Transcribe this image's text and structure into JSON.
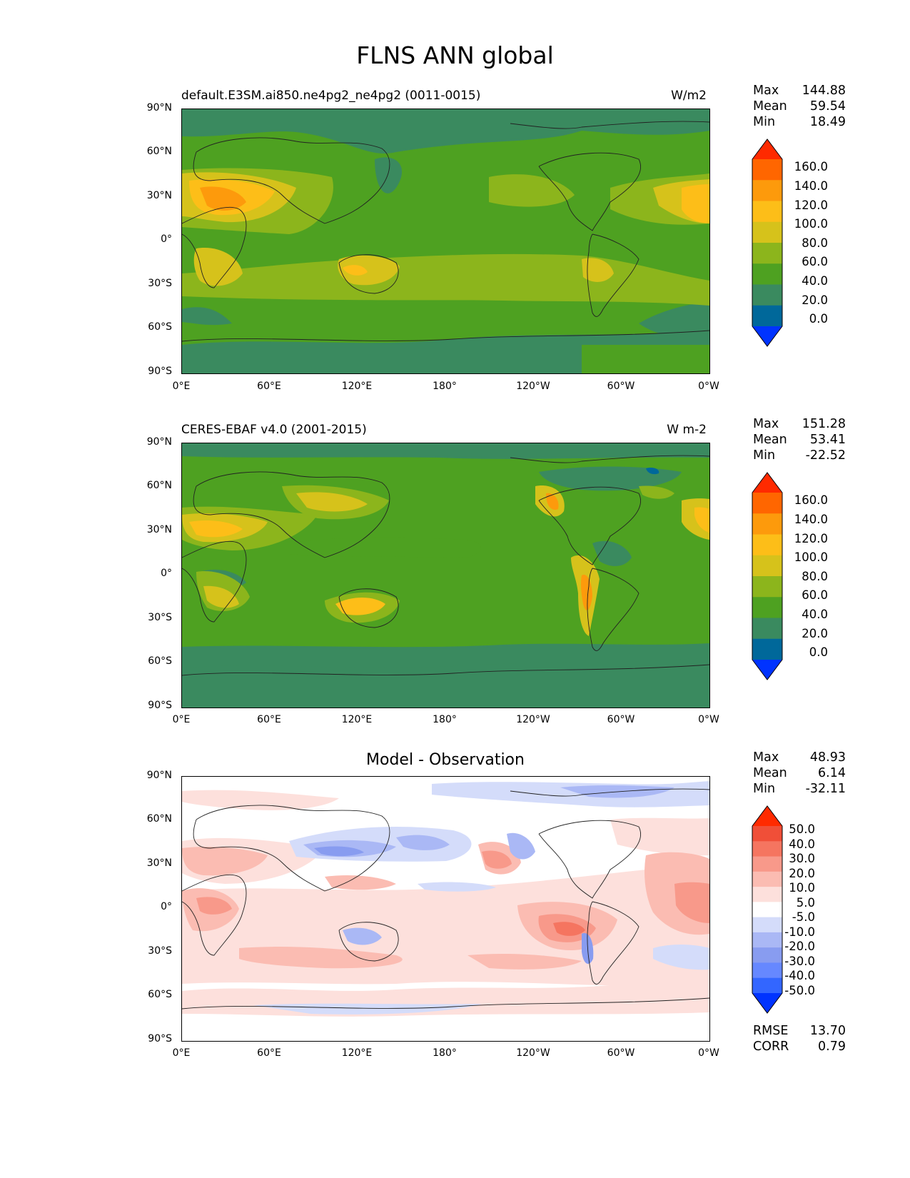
{
  "title": "FLNS ANN global",
  "axes": {
    "lat_ticks": [
      "90°N",
      "60°N",
      "30°N",
      "0°",
      "30°S",
      "60°S",
      "90°S"
    ],
    "lon_ticks": [
      "0°E",
      "60°E",
      "120°E",
      "180°",
      "120°W",
      "60°W",
      "0°W"
    ]
  },
  "panels": [
    {
      "title_left": "default.E3SM.ai850.ne4pg2_ne4pg2 (0011-0015)",
      "title_right": "W/m2",
      "stats": [
        {
          "label": "Max",
          "value": "144.88"
        },
        {
          "label": "Mean",
          "value": "59.54"
        },
        {
          "label": "Min",
          "value": "18.49"
        }
      ],
      "colorbar": {
        "labels": [
          "160.0",
          "140.0",
          "120.0",
          "100.0",
          "80.0",
          "60.0",
          "40.0",
          "20.0",
          "0.0"
        ],
        "colors": [
          "#0033ff",
          "#00689a",
          "#3a8a5f",
          "#4ea121",
          "#8cb51c",
          "#d6c21b",
          "#fdbe18",
          "#fd9a0c",
          "#ff6600",
          "#ff2a00"
        ]
      }
    },
    {
      "title_left": "CERES-EBAF v4.0 (2001-2015)",
      "title_right": "W m-2",
      "stats": [
        {
          "label": "Max",
          "value": "151.28"
        },
        {
          "label": "Mean",
          "value": "53.41"
        },
        {
          "label": "Min",
          "value": "-22.52"
        }
      ],
      "colorbar": {
        "labels": [
          "160.0",
          "140.0",
          "120.0",
          "100.0",
          "80.0",
          "60.0",
          "40.0",
          "20.0",
          "0.0"
        ],
        "colors": [
          "#0033ff",
          "#00689a",
          "#3a8a5f",
          "#4ea121",
          "#8cb51c",
          "#d6c21b",
          "#fdbe18",
          "#fd9a0c",
          "#ff6600",
          "#ff2a00"
        ]
      }
    },
    {
      "title_center": "Model - Observation",
      "stats": [
        {
          "label": "Max",
          "value": "48.93"
        },
        {
          "label": "Mean",
          "value": "6.14"
        },
        {
          "label": "Min",
          "value": "-32.11"
        }
      ],
      "colorbar": {
        "labels": [
          "50.0",
          "40.0",
          "30.0",
          "20.0",
          "10.0",
          "5.0",
          "-5.0",
          "-10.0",
          "-20.0",
          "-30.0",
          "-40.0",
          "-50.0"
        ],
        "colors": [
          "#0033ff",
          "#3366ff",
          "#6688ff",
          "#889cf0",
          "#aab8f5",
          "#d4dcfa",
          "#ffffff",
          "#fde0dc",
          "#fbbcb2",
          "#f8998a",
          "#f57560",
          "#f04f38",
          "#ff2a00"
        ]
      },
      "metrics": [
        {
          "label": "RMSE",
          "value": "13.70"
        },
        {
          "label": "CORR",
          "value": "0.79"
        }
      ]
    }
  ]
}
